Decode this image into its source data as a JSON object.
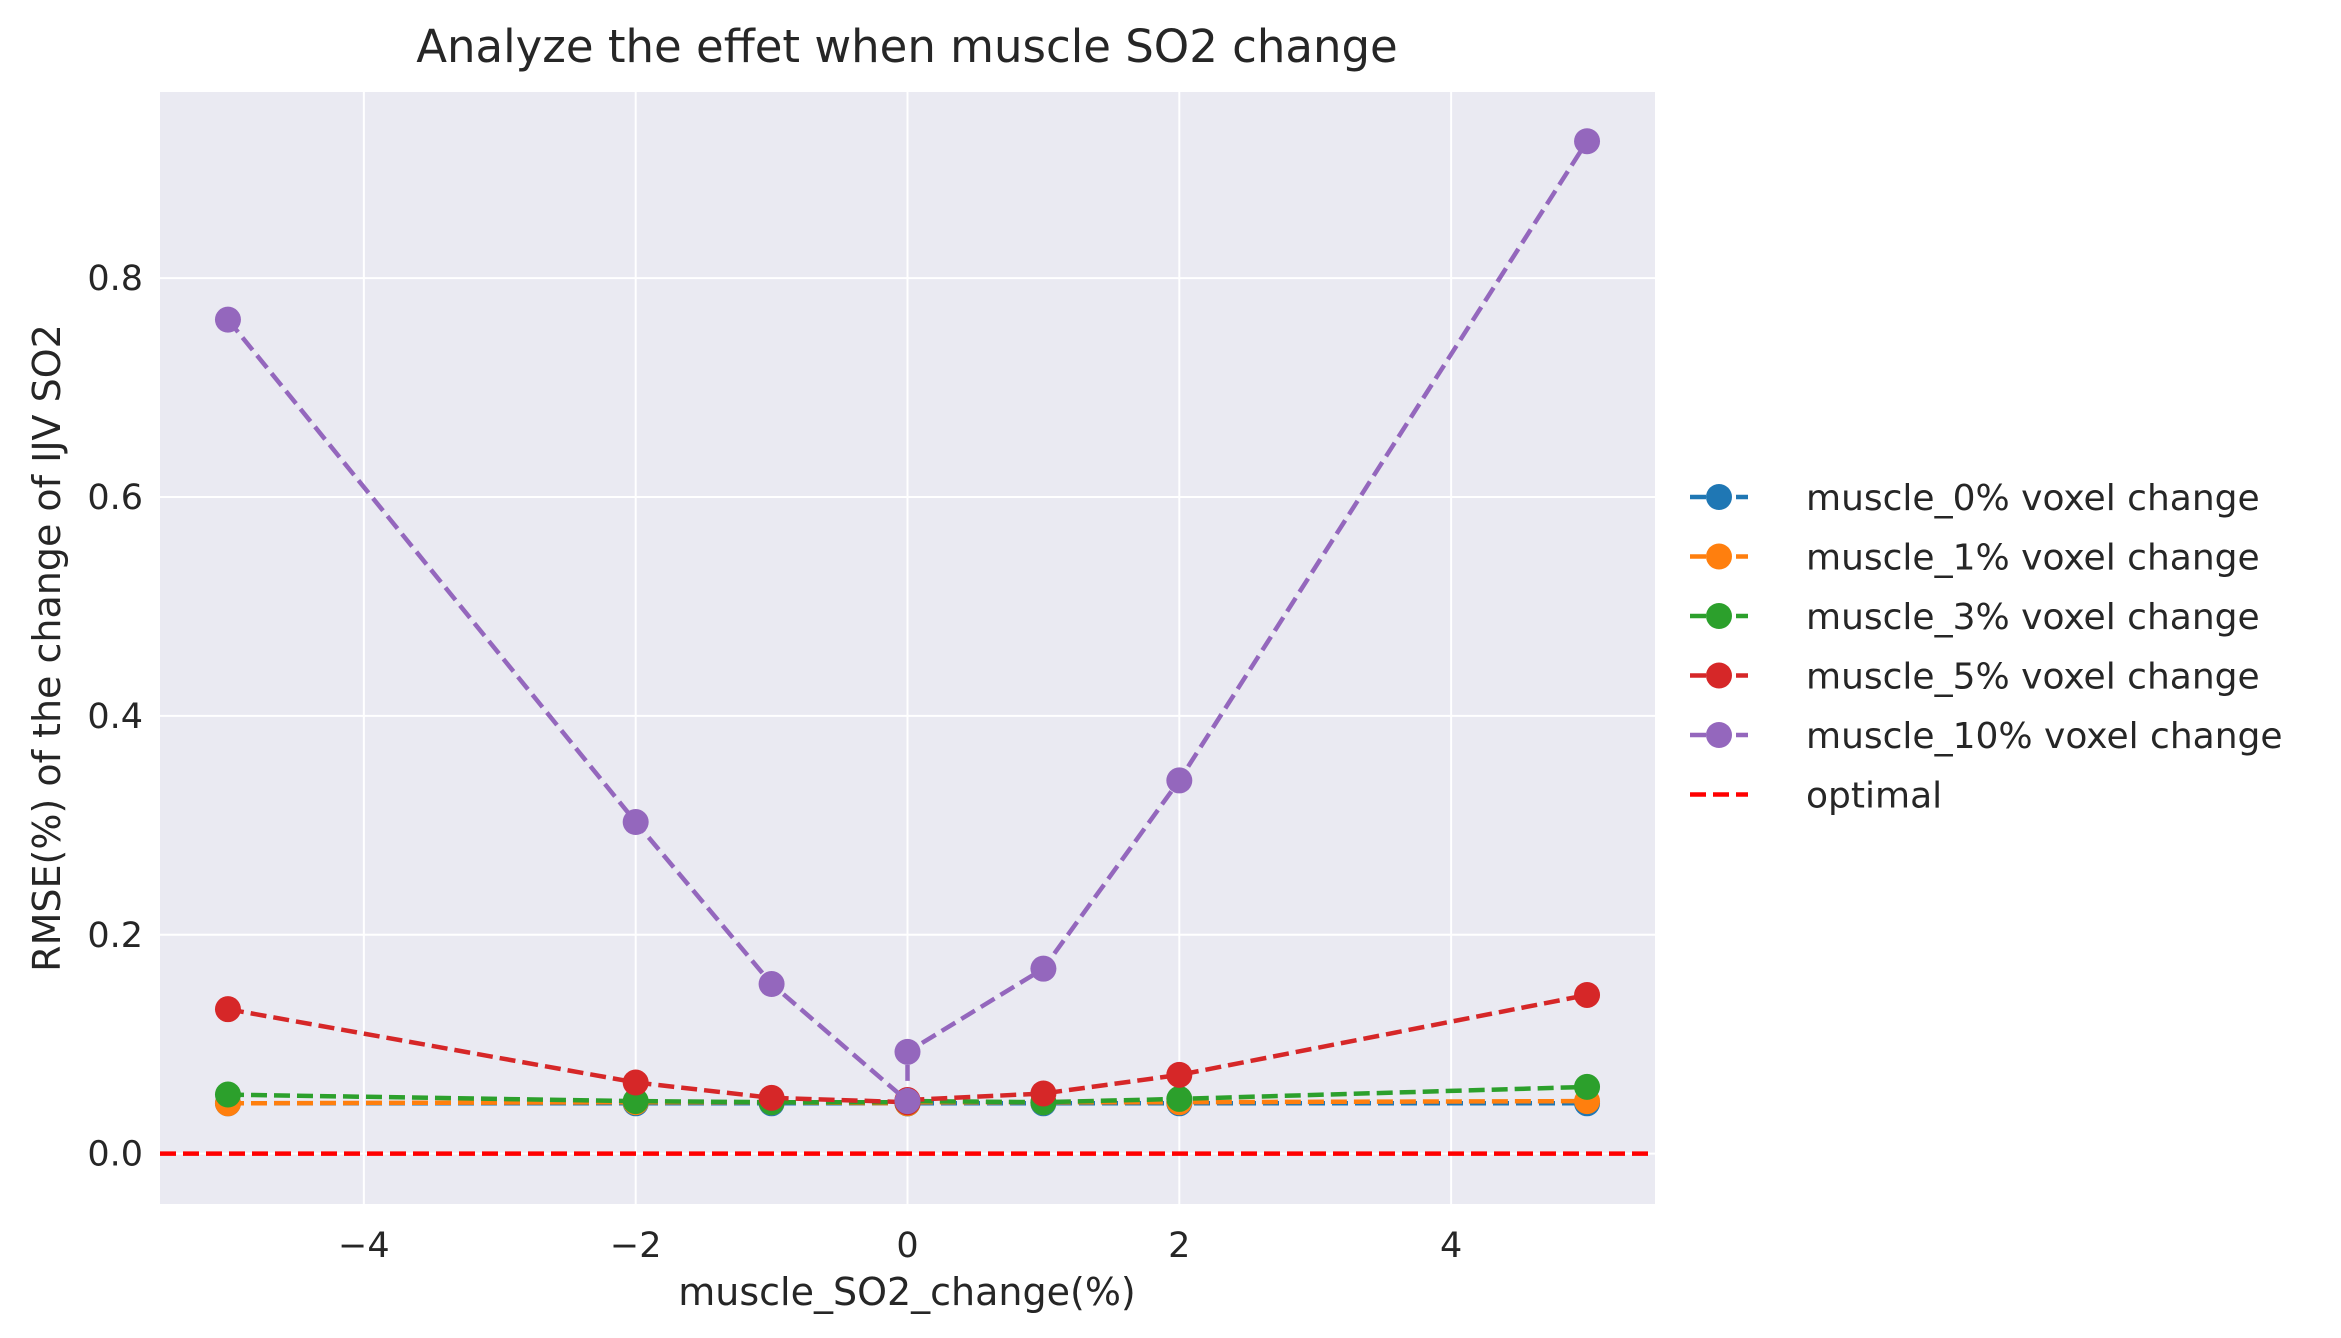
{
  "chart_data": {
    "type": "line",
    "title": "Analyze the effet when muscle SO2 change",
    "xlabel": "muscle_SO2_change(%)",
    "ylabel": "RMSE(%) of the change of IJV SO2",
    "xlim": [
      -5.5,
      5.5
    ],
    "ylim": [
      -0.046,
      0.97
    ],
    "xticks": [
      -4,
      -2,
      0,
      2,
      4
    ],
    "xtick_labels": [
      "−4",
      "−2",
      "0",
      "2",
      "4"
    ],
    "yticks": [
      0.0,
      0.2,
      0.4,
      0.6,
      0.8
    ],
    "ytick_labels": [
      "0.0",
      "0.2",
      "0.4",
      "0.6",
      "0.8"
    ],
    "grid": true,
    "legend_position": "outside right",
    "x": [
      -5,
      -2,
      -1,
      0,
      0,
      1,
      2,
      5
    ],
    "series": [
      {
        "name": "muscle_0% voxel change",
        "color": "#1f77b4",
        "values": [
          0.046,
          0.046,
          0.046,
          0.046,
          0.046,
          0.046,
          0.046,
          0.046
        ]
      },
      {
        "name": "muscle_1% voxel change",
        "color": "#ff7f0e",
        "values": [
          0.046,
          0.047,
          0.047,
          0.046,
          0.047,
          0.047,
          0.047,
          0.048
        ]
      },
      {
        "name": "muscle_3% voxel change",
        "color": "#2ca02c",
        "values": [
          0.054,
          0.048,
          0.047,
          0.047,
          0.048,
          0.047,
          0.05,
          0.061
        ]
      },
      {
        "name": "muscle_5% voxel change",
        "color": "#d62728",
        "values": [
          0.132,
          0.065,
          0.051,
          0.047,
          0.049,
          0.055,
          0.072,
          0.145
        ]
      },
      {
        "name": "muscle_10% voxel change",
        "color": "#9467bd",
        "values": [
          0.762,
          0.303,
          0.155,
          0.048,
          0.093,
          0.169,
          0.341,
          0.925
        ]
      }
    ],
    "reference_line": {
      "name": "optimal",
      "y": 0.0,
      "color": "#ff0000"
    }
  }
}
